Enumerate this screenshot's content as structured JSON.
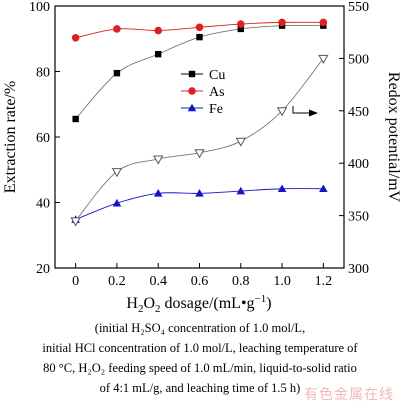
{
  "chart_data": {
    "type": "line",
    "xlabel_main": "H",
    "xlabel_sub1": "2",
    "xlabel_mid": "O",
    "xlabel_sub2": "2",
    "xlabel_tail": " dosage/(mL•g",
    "xlabel_sup": "−1",
    "xlabel_end": ")",
    "ylabel_left": "Extraction rate/%",
    "ylabel_right": "Redox potential/mV",
    "x": [
      0,
      0.2,
      0.4,
      0.6,
      0.8,
      1.0,
      1.2
    ],
    "x_ticks": [
      "0",
      "0.2",
      "0.4",
      "0.6",
      "0.8",
      "1.0",
      "1.2"
    ],
    "xlim": [
      -0.1,
      1.3
    ],
    "ylim_left": [
      20,
      100
    ],
    "yticks_left": [
      "20",
      "40",
      "60",
      "80",
      "100"
    ],
    "ylim_right": [
      300,
      550
    ],
    "yticks_right": [
      "300",
      "350",
      "400",
      "450",
      "500",
      "550"
    ],
    "series": [
      {
        "name": "Cu",
        "axis": "left",
        "marker": "square",
        "color": "#000000",
        "values": [
          65.5,
          79.5,
          85.3,
          90.5,
          93.0,
          94.0,
          94.0
        ]
      },
      {
        "name": "As",
        "axis": "left",
        "marker": "circle",
        "color": "#e02020",
        "values": [
          90.3,
          93.0,
          92.5,
          93.5,
          94.5,
          95.0,
          95.0
        ]
      },
      {
        "name": "Fe",
        "axis": "left",
        "marker": "triangle",
        "color": "#1515c8",
        "values": [
          34.8,
          39.8,
          42.8,
          42.8,
          43.5,
          44.2,
          44.2
        ]
      },
      {
        "name": "",
        "axis": "right",
        "marker": "open-triangle-down",
        "color": "#555555",
        "values": [
          345,
          392,
          404,
          410,
          421,
          450,
          500
        ]
      }
    ],
    "legend_position": "center-right"
  },
  "caption": {
    "line1": "(initial  H₂SO₄  concentration  of  1.0  mol/L,",
    "line2": "initial HCl concentration of 1.0 mol/L, leaching temperature of",
    "line3": "80 °C, H₂O₂ feeding speed of 1.0 mL/min, liquid-to-solid ratio",
    "line4": "of 4:1 mL/g, and leaching time of 1.5 h)"
  },
  "watermark": "有色金属在线"
}
